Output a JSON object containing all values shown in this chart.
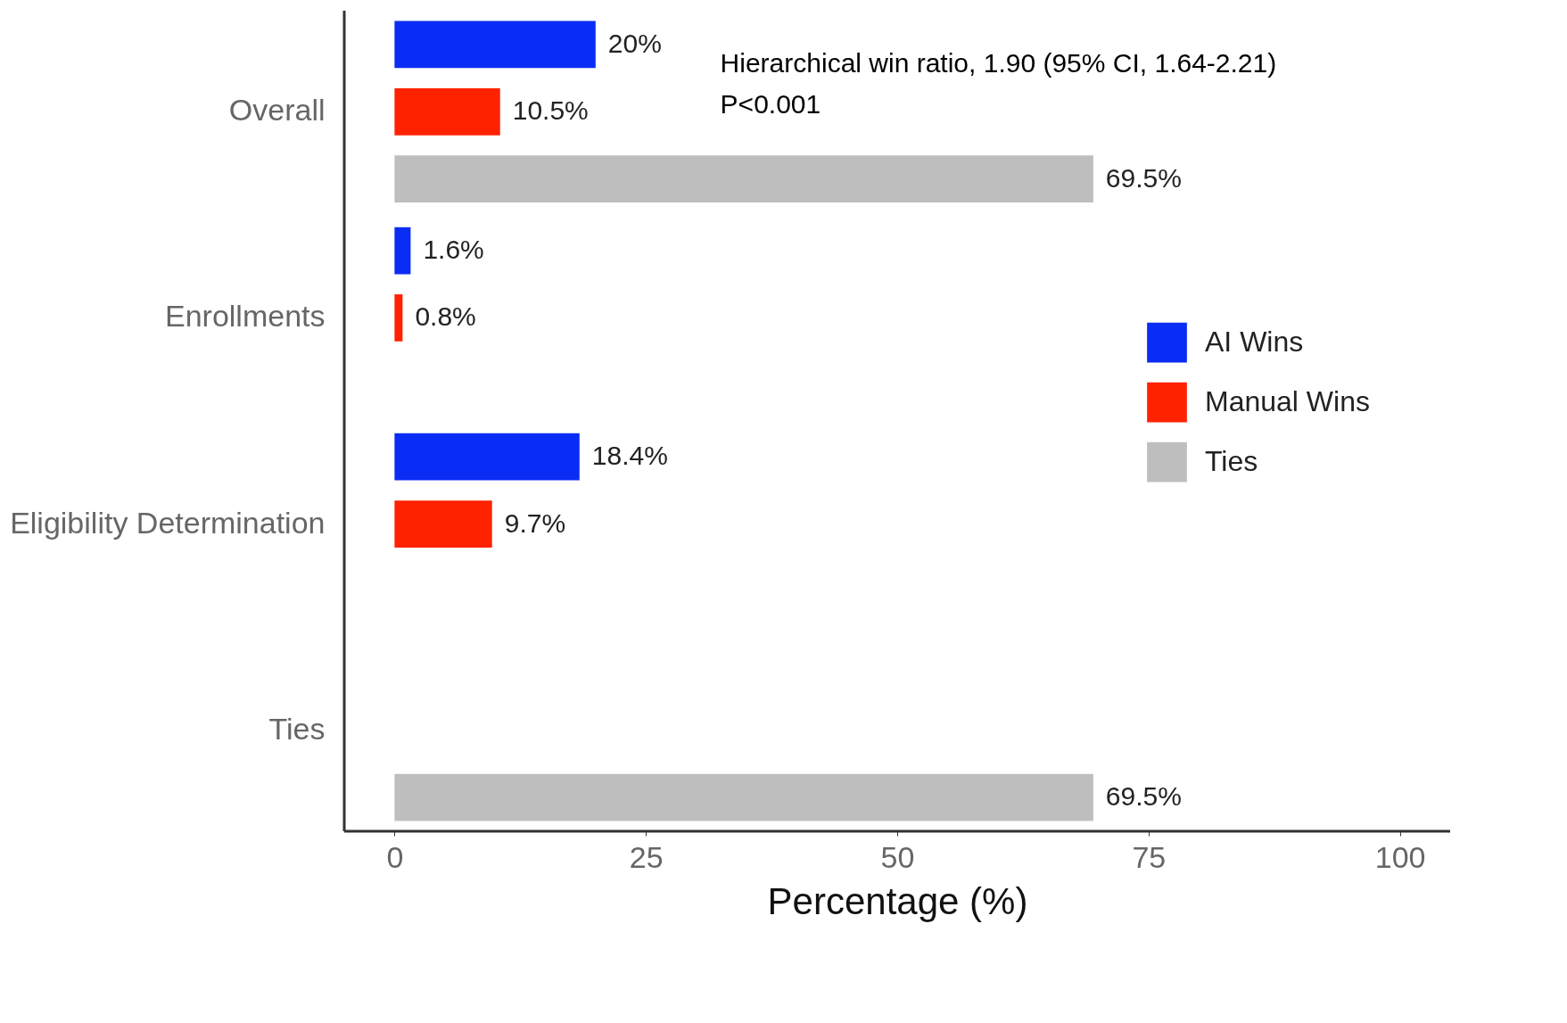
{
  "chart_data": {
    "type": "bar",
    "orientation": "horizontal",
    "xlabel": "Percentage (%)",
    "categories": [
      "Overall",
      "Enrollments",
      "Eligibility Determination",
      "Ties"
    ],
    "series": [
      {
        "name": "AI Wins",
        "color": "#0a2df5",
        "values": [
          20,
          1.6,
          18.4,
          null
        ],
        "value_labels": [
          "20%",
          "1.6%",
          "18.4%",
          null
        ]
      },
      {
        "name": "Manual Wins",
        "color": "#ff2200",
        "values": [
          10.5,
          0.8,
          9.7,
          null
        ],
        "value_labels": [
          "10.5%",
          "0.8%",
          "9.7%",
          null
        ]
      },
      {
        "name": "Ties",
        "color": "#bebebe",
        "values": [
          69.5,
          null,
          null,
          69.5
        ],
        "value_labels": [
          "69.5%",
          null,
          null,
          "69.5%"
        ]
      }
    ],
    "xlim": [
      -5,
      105
    ],
    "xticks": [
      0,
      25,
      50,
      75,
      100
    ],
    "grid": false,
    "legend": "right",
    "annotations": [
      "Hierarchical win ratio, 1.90 (95% CI, 1.64-2.21)",
      "P<0.001"
    ]
  }
}
